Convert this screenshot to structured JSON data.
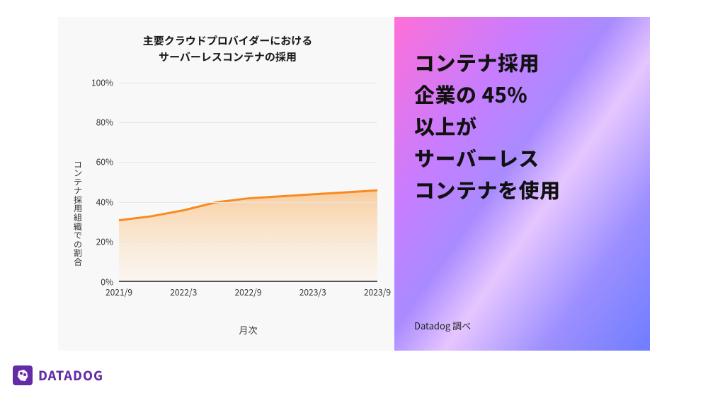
{
  "chart": {
    "type": "area",
    "title_line1": "主要クラウドプロバイダーにおける",
    "title_line2": "サーバーレスコンテナの採用",
    "title_fontsize": 15,
    "y_axis_label": "コンテナ採用組織での割合",
    "x_axis_label": "月次",
    "label_fontsize": 12,
    "ylim": [
      0,
      100
    ],
    "ytick_step": 20,
    "y_ticks": [
      0,
      20,
      40,
      60,
      80,
      100
    ],
    "y_tick_suffix": "%",
    "x_categories": [
      "2021/9",
      "2022/3",
      "2022/9",
      "2023/3",
      "2023/9"
    ],
    "values": [
      31,
      33,
      36,
      40,
      42,
      43,
      44,
      45,
      46
    ],
    "line_color": "#f78b1f",
    "line_width": 3,
    "area_fill_top": "#f9c58d",
    "area_fill_bottom": "#fdf2e4",
    "area_opacity": 0.75,
    "grid_color": "#e6e6e6",
    "baseline_color": "#555555",
    "background_color": "#f8f8f8"
  },
  "headline": {
    "lines": [
      "コンテナ採用",
      "企業の 45%",
      "以上が",
      "サーバーレス",
      "コンテナを使用"
    ],
    "fontsize": 29,
    "color": "#111111",
    "gradient_colors": [
      "#ff6fd8",
      "#c77dff",
      "#a98bff",
      "#e6c6ff",
      "#9d8fff",
      "#6e7dff"
    ],
    "source_text": "Datadog 調べ",
    "source_fontsize": 13
  },
  "brand": {
    "name": "DATADOG",
    "color": "#632ca6"
  }
}
